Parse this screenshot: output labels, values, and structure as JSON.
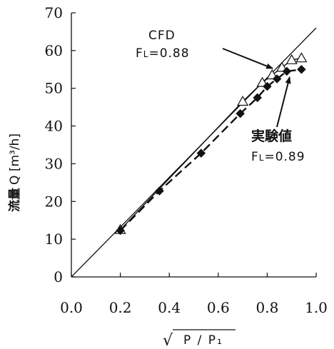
{
  "chart_data": {
    "type": "scatter",
    "title": "",
    "xlabel_sqrt": "√",
    "xlabel_text": "P / P₁",
    "ylabel_bold": "流量",
    "ylabel_rest": "Q [m³/h]",
    "xlim": [
      0.0,
      1.0
    ],
    "ylim": [
      0,
      70
    ],
    "xticks": [
      "0.0",
      "0.2",
      "0.4",
      "0.6",
      "0.8",
      "1.0"
    ],
    "yticks": [
      "0",
      "10",
      "20",
      "30",
      "40",
      "50",
      "60",
      "70"
    ],
    "reference_line": {
      "x": [
        0.0,
        1.0
      ],
      "y": [
        0,
        66
      ]
    },
    "series": [
      {
        "marker": "open-triangle",
        "line": "solid",
        "x": [
          0.2,
          0.7,
          0.78,
          0.82,
          0.86,
          0.9,
          0.94
        ],
        "y": [
          12.5,
          46.5,
          51.5,
          53.5,
          55.5,
          57.5,
          58
        ]
      },
      {
        "marker": "filled-diamond",
        "line": "dashed",
        "x": [
          0.2,
          0.36,
          0.53,
          0.69,
          0.76,
          0.8,
          0.84,
          0.88,
          0.94
        ],
        "y": [
          12.3,
          22.8,
          32.8,
          43.3,
          47.5,
          50.5,
          52.5,
          54.5,
          55
        ]
      }
    ],
    "annotations": [
      {
        "id": "cfd",
        "line1": "CFD",
        "line2_prefix": "F",
        "line2_sub": "L",
        "line2_value": "=0.88",
        "arrow_to": [
          0.84,
          54.5
        ]
      },
      {
        "id": "exp",
        "line1": "実験値",
        "line2_prefix": "F",
        "line2_sub": "L",
        "line2_value": "=0.89",
        "arrow_to": [
          0.88,
          54.5
        ]
      }
    ]
  }
}
